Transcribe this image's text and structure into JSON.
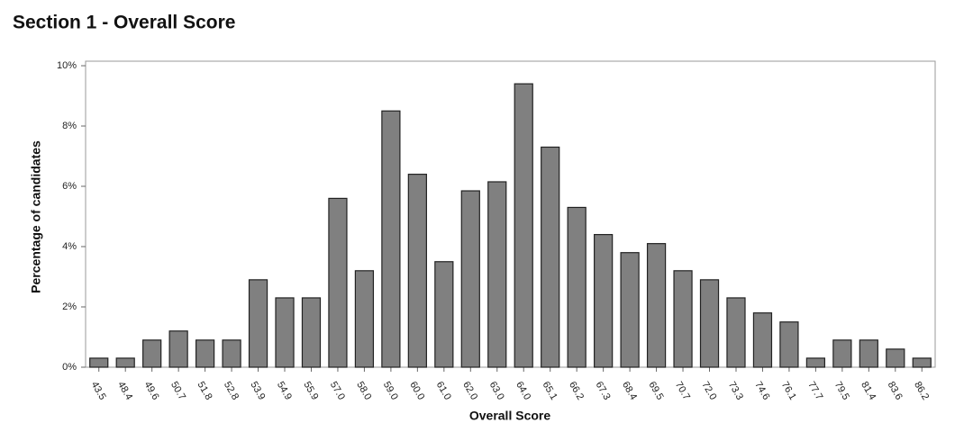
{
  "chart_data": {
    "type": "bar",
    "title": "Section 1 - Overall Score",
    "x_label": "Overall Score",
    "y_label": "Percentage of candidates",
    "categories": [
      "43.5",
      "48.4",
      "49.6",
      "50.7",
      "51.8",
      "52.8",
      "53.9",
      "54.9",
      "55.9",
      "57.0",
      "58.0",
      "59.0",
      "60.0",
      "61.0",
      "62.0",
      "63.0",
      "64.0",
      "65.1",
      "66.2",
      "67.3",
      "68.4",
      "69.5",
      "70.7",
      "72.0",
      "73.3",
      "74.6",
      "76.1",
      "77.7",
      "79.5",
      "81.4",
      "83.6",
      "86.2"
    ],
    "values": [
      0.3,
      0.3,
      0.9,
      1.2,
      0.9,
      0.9,
      2.9,
      2.3,
      2.3,
      5.6,
      3.2,
      8.5,
      6.4,
      3.5,
      5.85,
      6.15,
      9.4,
      7.3,
      5.3,
      4.4,
      3.8,
      4.1,
      3.2,
      2.9,
      2.3,
      1.8,
      1.5,
      0.3,
      0.9,
      0.9,
      0.6,
      0.3
    ],
    "color": "#808080",
    "ylim": [
      0,
      10.15
    ],
    "yticks": [
      {
        "value": 0,
        "label": "0%"
      },
      {
        "value": 2,
        "label": "2%"
      },
      {
        "value": 4,
        "label": "4%"
      },
      {
        "value": 6,
        "label": "6%"
      },
      {
        "value": 8,
        "label": "8%"
      },
      {
        "value": 10,
        "label": "10%"
      }
    ],
    "grid": false
  }
}
